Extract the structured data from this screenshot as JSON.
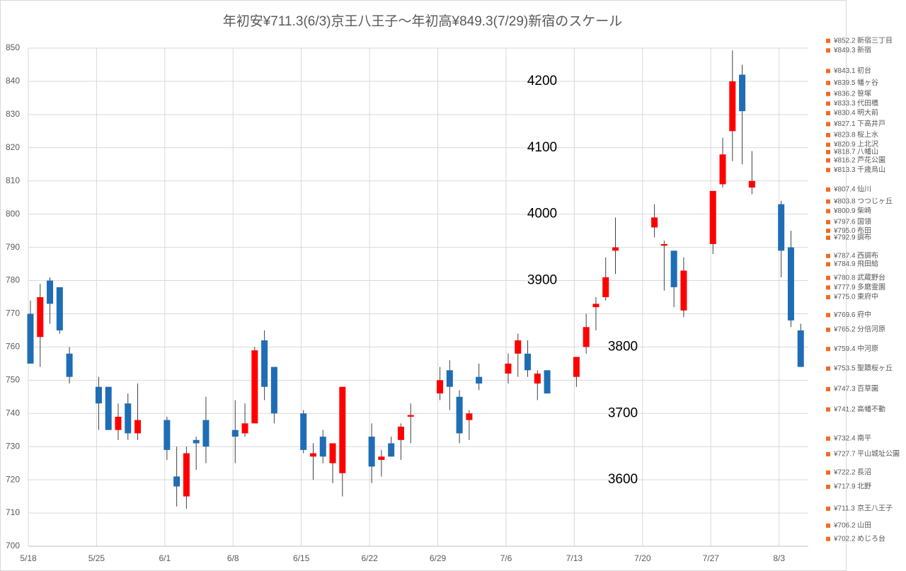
{
  "chart_data": {
    "type": "candlestick",
    "title": "年初安¥711.3(6/3)京王八王子～年初高¥849.3(7/29)新宿のスケール",
    "x": [
      "5/18",
      "5/19",
      "5/20",
      "5/21",
      "5/22",
      "5/25",
      "5/26",
      "5/27",
      "5/28",
      "5/29",
      "6/1",
      "6/2",
      "6/3",
      "6/4",
      "6/5",
      "6/8",
      "6/9",
      "6/10",
      "6/11",
      "6/12",
      "6/15",
      "6/16",
      "6/17",
      "6/18",
      "6/19",
      "6/22",
      "6/23",
      "6/24",
      "6/25",
      "6/26",
      "6/29",
      "6/30",
      "7/1",
      "7/2",
      "7/3",
      "7/6",
      "7/7",
      "7/8",
      "7/9",
      "7/10",
      "7/13",
      "7/14",
      "7/15",
      "7/16",
      "7/17",
      "7/21",
      "7/22",
      "7/23",
      "7/24",
      "7/27",
      "7/28",
      "7/29",
      "7/30",
      "7/31",
      "8/3",
      "8/4",
      "8/5"
    ],
    "open": [
      770,
      763,
      780,
      778,
      758,
      748,
      748,
      735,
      743,
      734,
      738,
      721,
      715,
      732,
      738,
      735,
      734,
      737,
      762,
      754,
      740,
      727,
      733,
      725,
      722,
      733,
      726,
      731,
      732,
      739,
      746,
      753,
      745,
      738,
      751,
      752,
      758,
      758,
      749,
      753,
      751,
      760,
      772,
      775,
      789,
      796,
      790.5,
      789,
      771,
      791,
      809,
      825,
      842,
      808,
      803,
      790,
      765
    ],
    "high": [
      774,
      779,
      781,
      778,
      760,
      751,
      748,
      743,
      746,
      749,
      739,
      730,
      730,
      733,
      745,
      744,
      743,
      760,
      765,
      754,
      741,
      731,
      735,
      731,
      748,
      737,
      729,
      733,
      737,
      743,
      754,
      756,
      747,
      741,
      755,
      758,
      764,
      762,
      753,
      753,
      757,
      770,
      775,
      787,
      799,
      803,
      792,
      789,
      787,
      807,
      823,
      849.3,
      845,
      819,
      804,
      795,
      767
    ],
    "low": [
      755,
      754,
      767,
      764,
      749,
      735,
      735,
      732,
      732,
      732,
      726,
      712,
      711.3,
      723,
      725,
      725,
      733,
      737,
      744,
      737,
      728,
      720,
      725,
      719,
      715,
      719,
      721,
      727,
      726,
      731,
      744,
      741,
      731,
      732,
      747,
      749,
      751,
      751,
      744,
      746,
      748,
      758,
      765,
      774,
      782,
      793,
      777,
      772,
      769,
      788,
      808,
      816,
      815,
      806,
      781,
      766,
      754
    ],
    "close": [
      755,
      775,
      773,
      765,
      751,
      743,
      735,
      739,
      734,
      738,
      729,
      718,
      728,
      731,
      730,
      733,
      737,
      759,
      748,
      740,
      729,
      728,
      727,
      731,
      748,
      724,
      727,
      727,
      736,
      739.5,
      750,
      748,
      734,
      740,
      749,
      755,
      762,
      753,
      752,
      746,
      757,
      766,
      773,
      781,
      790,
      799,
      791,
      778,
      783,
      807,
      818,
      840,
      831,
      810,
      789,
      768,
      754
    ],
    "up_color": "#ff0000",
    "down_color": "#1f6db5",
    "xlim": [
      "5/18",
      "8/6"
    ],
    "xticks": [
      "5/18",
      "5/25",
      "6/1",
      "6/8",
      "6/15",
      "6/22",
      "6/29",
      "7/6",
      "7/13",
      "7/20",
      "7/27",
      "8/3"
    ],
    "ylim": [
      700,
      850
    ],
    "yticks": [
      700,
      710,
      720,
      730,
      740,
      750,
      760,
      770,
      780,
      790,
      800,
      810,
      820,
      830,
      840,
      850
    ],
    "y2lim": [
      3500,
      4250
    ],
    "y2ticks": [
      3600,
      3700,
      3800,
      3900,
      4000,
      4100,
      4200
    ],
    "grid": true,
    "station_color": "#f26b21",
    "stations": [
      {
        "value": 852.2,
        "label": "¥852.2",
        "name": "新宿三丁目"
      },
      {
        "value": 849.3,
        "label": "¥849.3",
        "name": "新宿"
      },
      {
        "value": 843.1,
        "label": "¥843.1",
        "name": "初台"
      },
      {
        "value": 839.5,
        "label": "¥839.5",
        "name": "幡ヶ谷"
      },
      {
        "value": 836.2,
        "label": "¥836.2",
        "name": "笹塚"
      },
      {
        "value": 833.3,
        "label": "¥833.3",
        "name": "代田橋"
      },
      {
        "value": 830.4,
        "label": "¥830.4",
        "name": "明大前"
      },
      {
        "value": 827.1,
        "label": "¥827.1",
        "name": "下高井戸"
      },
      {
        "value": 823.8,
        "label": "¥823.8",
        "name": "桜上水"
      },
      {
        "value": 820.9,
        "label": "¥820.9",
        "name": "上北沢"
      },
      {
        "value": 818.7,
        "label": "¥818.7",
        "name": "八幡山"
      },
      {
        "value": 816.2,
        "label": "¥816.2",
        "name": "芦花公園"
      },
      {
        "value": 813.3,
        "label": "¥813.3",
        "name": "千歳烏山"
      },
      {
        "value": 807.4,
        "label": "¥807.4",
        "name": "仙川"
      },
      {
        "value": 803.8,
        "label": "¥803.8",
        "name": "つつじヶ丘"
      },
      {
        "value": 800.9,
        "label": "¥800.9",
        "name": "柴崎"
      },
      {
        "value": 797.6,
        "label": "¥797.6",
        "name": "国領"
      },
      {
        "value": 795,
        "label": "¥795.0",
        "name": "布田"
      },
      {
        "value": 792.9,
        "label": "¥792.9",
        "name": "調布"
      },
      {
        "value": 787.4,
        "label": "¥787.4",
        "name": "西調布"
      },
      {
        "value": 784.9,
        "label": "¥784.9",
        "name": "飛田給"
      },
      {
        "value": 780.8,
        "label": "¥780.8",
        "name": "武蔵野台"
      },
      {
        "value": 777.9,
        "label": "¥777.9",
        "name": "多磨霊園"
      },
      {
        "value": 775,
        "label": "¥775.0",
        "name": "東府中"
      },
      {
        "value": 769.6,
        "label": "¥769.6",
        "name": "府中"
      },
      {
        "value": 765.2,
        "label": "¥765.2",
        "name": "分倍河原"
      },
      {
        "value": 759.4,
        "label": "¥759.4",
        "name": "中河原"
      },
      {
        "value": 753.5,
        "label": "¥753.5",
        "name": "聖蹟桜ヶ丘"
      },
      {
        "value": 747.3,
        "label": "¥747.3",
        "name": "百草園"
      },
      {
        "value": 741.2,
        "label": "¥741.2",
        "name": "高幡不動"
      },
      {
        "value": 732.4,
        "label": "¥732.4",
        "name": "南平"
      },
      {
        "value": 727.7,
        "label": "¥727.7",
        "name": "平山城址公園"
      },
      {
        "value": 722.2,
        "label": "¥722.2",
        "name": "長沼"
      },
      {
        "value": 717.9,
        "label": "¥717.9",
        "name": "北野"
      },
      {
        "value": 711.3,
        "label": "¥711.3",
        "name": "京王八王子"
      },
      {
        "value": 706.2,
        "label": "¥706.2",
        "name": "山田"
      },
      {
        "value": 702.2,
        "label": "¥702.2",
        "name": "めじろ台"
      }
    ]
  }
}
